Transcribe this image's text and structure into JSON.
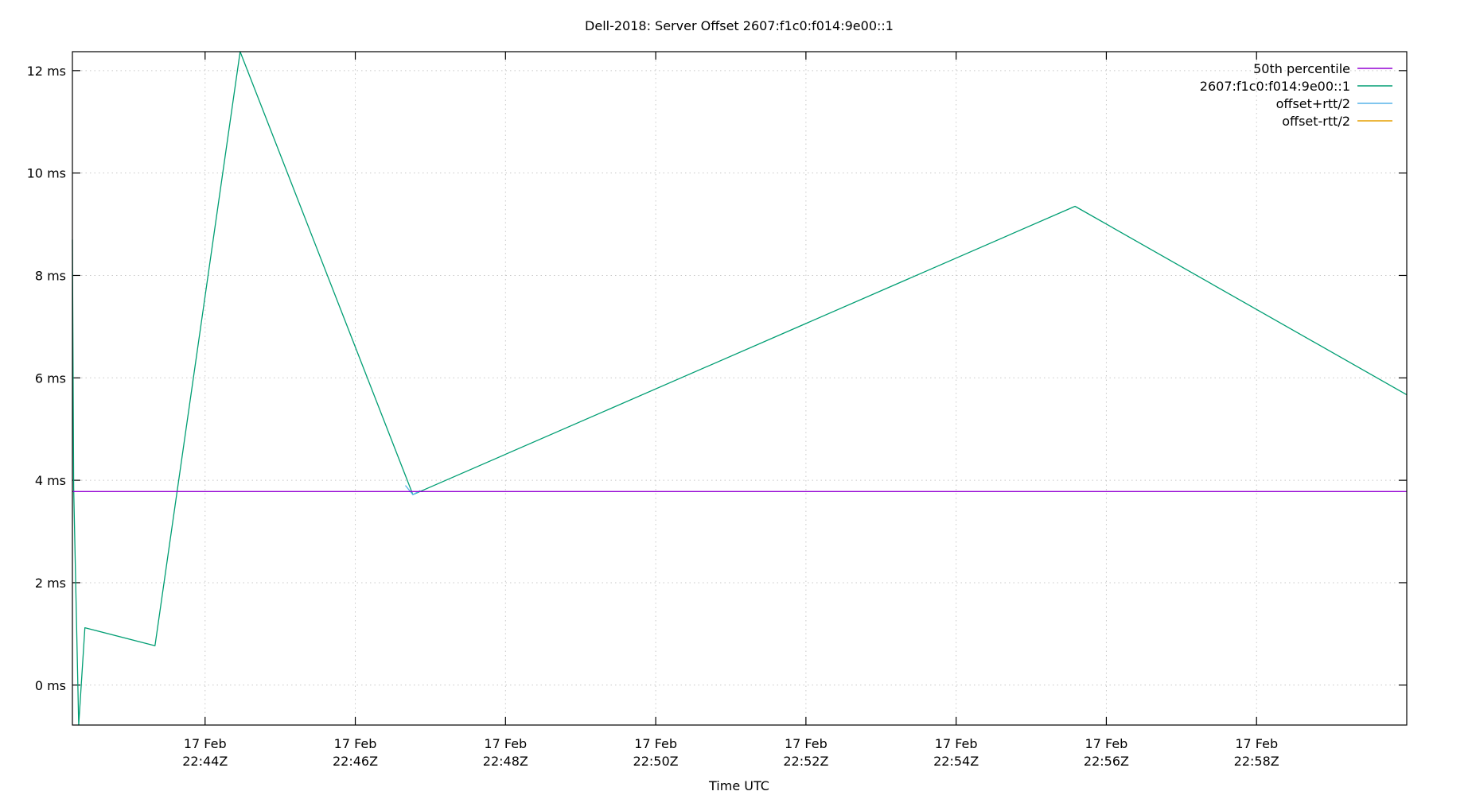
{
  "chart_data": {
    "type": "line",
    "title": "Dell-2018: Server Offset 2607:f1c0:f014:9e00::1",
    "xlabel": "Time UTC",
    "ylabel": "",
    "xlim": [
      "22:42:14",
      "23:00:00"
    ],
    "ylim": [
      -0.78,
      12.37
    ],
    "y_unit": "ms",
    "grid": true,
    "legend_placement": "top-right",
    "y_ticks": [
      0,
      2,
      4,
      6,
      8,
      10,
      12
    ],
    "y_tick_labels": [
      "0 ms",
      "2 ms",
      "4 ms",
      "6 ms",
      "8 ms",
      "10 ms",
      "12 ms"
    ],
    "x_ticks": [
      "22:44:00",
      "22:46:00",
      "22:48:00",
      "22:50:00",
      "22:52:00",
      "22:54:00",
      "22:56:00",
      "22:58:00"
    ],
    "x_tick_labels": [
      [
        "17 Feb",
        "22:44Z"
      ],
      [
        "17 Feb",
        "22:46Z"
      ],
      [
        "17 Feb",
        "22:48Z"
      ],
      [
        "17 Feb",
        "22:50Z"
      ],
      [
        "17 Feb",
        "22:52Z"
      ],
      [
        "17 Feb",
        "22:54Z"
      ],
      [
        "17 Feb",
        "22:56Z"
      ],
      [
        "17 Feb",
        "22:58Z"
      ]
    ],
    "series": [
      {
        "name": "50th percentile",
        "color": "#9400d3",
        "x": [
          "22:42:14",
          "23:00:00"
        ],
        "y": [
          3.78,
          3.78
        ]
      },
      {
        "name": "2607:f1c0:f014:9e00::1",
        "color": "#009e73",
        "x": [
          "22:42:14",
          "22:42:15",
          "22:42:19",
          "22:42:24",
          "22:43:20",
          "22:44:28",
          "22:46:46",
          "22:55:35",
          "23:00:00"
        ],
        "y": [
          8.7,
          3.85,
          -0.78,
          1.12,
          0.77,
          12.37,
          3.72,
          9.35,
          5.67
        ]
      },
      {
        "name": "offset+rtt/2",
        "color": "#56b4e9",
        "x": [
          "22:46:40",
          "22:46:46",
          "22:46:52"
        ],
        "y": [
          3.9,
          3.72,
          3.8
        ]
      },
      {
        "name": "offset-rtt/2",
        "color": "#e69f00",
        "x": [],
        "y": []
      }
    ]
  }
}
